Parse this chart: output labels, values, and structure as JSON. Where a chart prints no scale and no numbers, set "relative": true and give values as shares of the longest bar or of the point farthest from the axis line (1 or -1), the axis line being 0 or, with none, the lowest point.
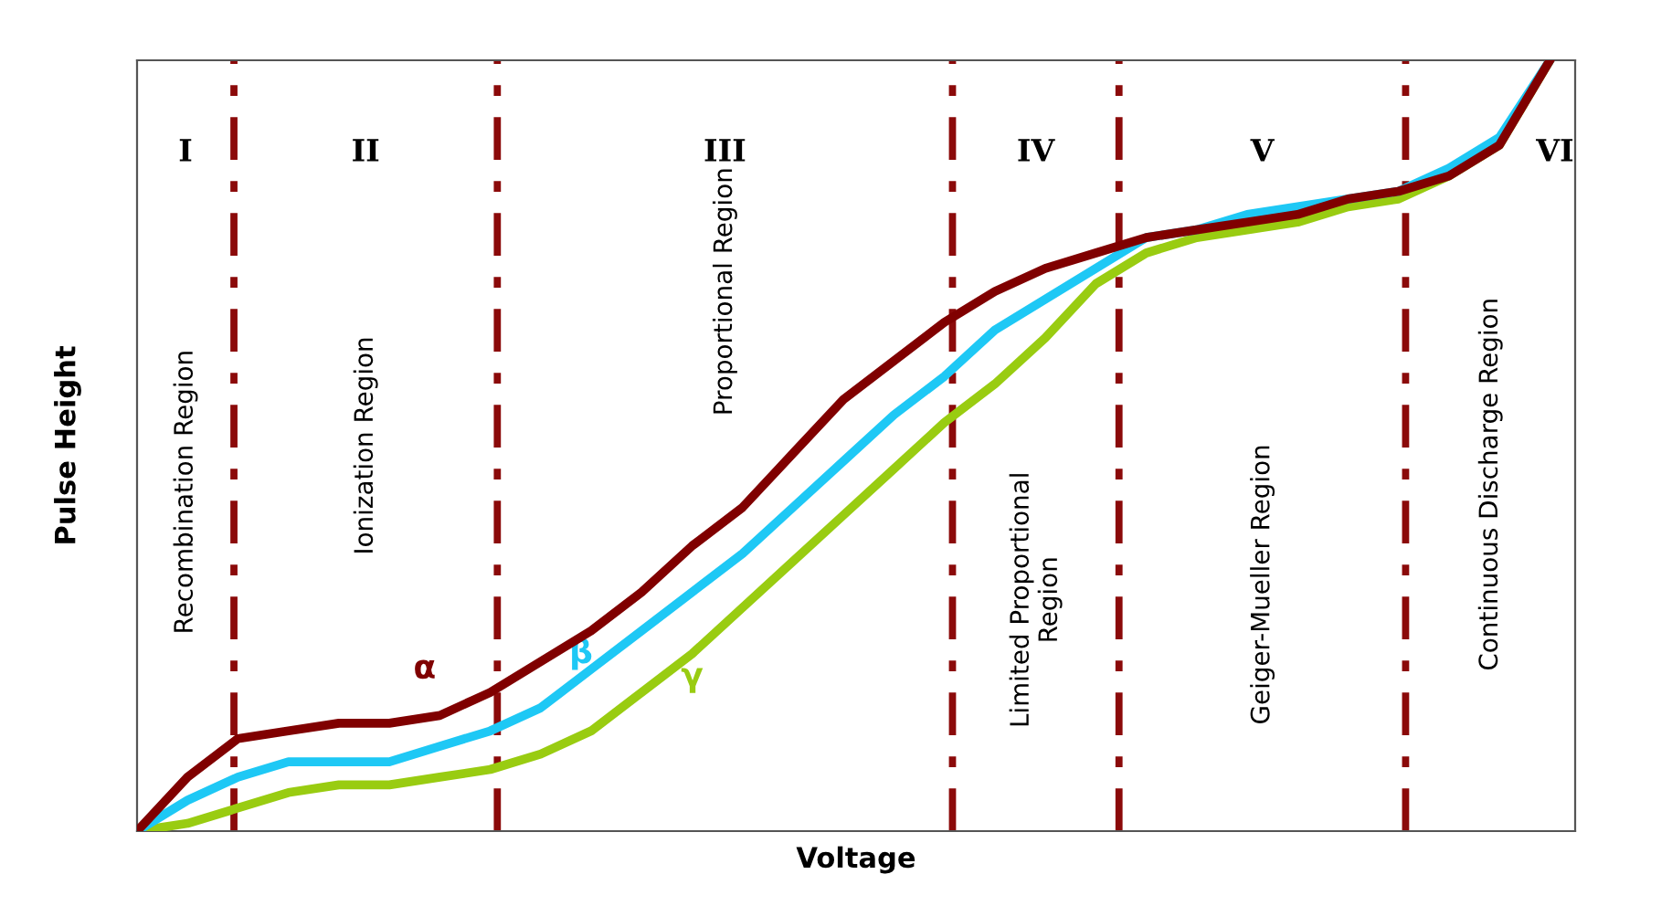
{
  "chart_data": {
    "type": "line",
    "relative": true,
    "xlabel": "Voltage",
    "ylabel": "Pulse Height",
    "categories": [
      null,
      null,
      null,
      null,
      null,
      null,
      null,
      null,
      null,
      null,
      null,
      null,
      null,
      null,
      null,
      null,
      null,
      null,
      null,
      null,
      null,
      null,
      null,
      null,
      null,
      null,
      null,
      null,
      null
    ],
    "series": [
      {
        "name": "α",
        "color": "#800000",
        "values": [
          0,
          0.07,
          0.12,
          0.13,
          0.14,
          0.14,
          0.15,
          0.18,
          0.22,
          0.26,
          0.31,
          0.37,
          0.42,
          0.49,
          0.56,
          0.61,
          0.66,
          0.7,
          0.73,
          0.75,
          0.77,
          0.78,
          0.79,
          0.8,
          0.82,
          0.83,
          0.85,
          0.89,
          1
        ]
      },
      {
        "name": "β",
        "color": "#1ec8f5",
        "values": [
          0,
          0.04,
          0.07,
          0.09,
          0.09,
          0.09,
          0.11,
          0.13,
          0.16,
          0.21,
          0.26,
          0.31,
          0.36,
          0.42,
          0.48,
          0.54,
          0.59,
          0.65,
          0.69,
          0.73,
          0.77,
          0.78,
          0.8,
          0.81,
          0.82,
          0.83,
          0.86,
          0.9,
          1
        ]
      },
      {
        "name": "γ",
        "color": "#99cc11",
        "values": [
          0,
          0.01,
          0.03,
          0.05,
          0.06,
          0.06,
          0.07,
          0.08,
          0.1,
          0.13,
          0.18,
          0.23,
          0.29,
          0.35,
          0.41,
          0.47,
          0.53,
          0.58,
          0.64,
          0.71,
          0.75,
          0.77,
          0.78,
          0.79,
          0.81,
          0.82,
          0.85,
          0.89,
          1
        ]
      }
    ],
    "annotations": [
      "I",
      "Recombination Region",
      "II",
      "Ionization Region",
      "III",
      "Proportional Region",
      "IV",
      "Limited Proportional\nRegion",
      "V",
      "Geiger-Mueller Region",
      "VI",
      "Continuous Discharge Region"
    ],
    "tick_labels": false,
    "grid": false,
    "legend": false,
    "line_style": "solid",
    "marker": "none"
  }
}
